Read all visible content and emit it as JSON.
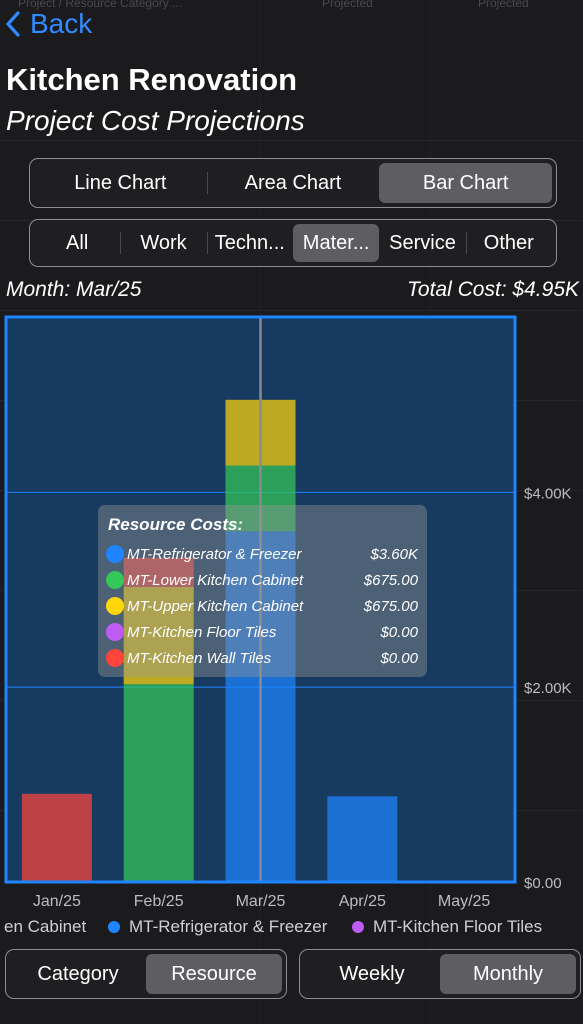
{
  "nav": {
    "back_label": "Back"
  },
  "header": {
    "title": "Kitchen Renovation",
    "subtitle": "Project Cost Projections"
  },
  "background_fragments": [
    "Project / Resource Category ...",
    "Projected",
    "Projected"
  ],
  "chart_type_tabs": [
    "Line Chart",
    "Area Chart",
    "Bar Chart"
  ],
  "chart_type_selected": 2,
  "category_tabs": [
    "All",
    "Work",
    "Techn...",
    "Mater...",
    "Service",
    "Other"
  ],
  "category_selected": 3,
  "summary": {
    "month": "Month: Mar/25",
    "total": "Total Cost: $4.95K"
  },
  "tooltip": {
    "title": "Resource Costs:",
    "rows": [
      {
        "name": "MT-Refrigerator & Freezer",
        "value": "$3.60K",
        "color": "#1f84ff"
      },
      {
        "name": "MT-Lower Kitchen Cabinet",
        "value": "$675.00",
        "color": "#34c759"
      },
      {
        "name": "MT-Upper Kitchen Cabinet",
        "value": "$675.00",
        "color": "#ffd60a"
      },
      {
        "name": "MT-Kitchen Floor Tiles",
        "value": "$0.00",
        "color": "#bf5af2"
      },
      {
        "name": "MT-Kitchen Wall Tiles",
        "value": "$0.00",
        "color": "#ff453a"
      }
    ]
  },
  "legend": [
    {
      "label": "en Cabinet",
      "color": null
    },
    {
      "label": "MT-Refrigerator & Freezer",
      "color": "#1f84ff"
    },
    {
      "label": "MT-Kitchen Floor Tiles",
      "color": "#bf5af2"
    }
  ],
  "group_tabs": [
    "Category",
    "Resource"
  ],
  "group_selected": 1,
  "period_tabs": [
    "Weekly",
    "Monthly"
  ],
  "period_selected": 1,
  "chart_data": {
    "type": "bar",
    "stacked": true,
    "categories": [
      "Jan/25",
      "Feb/25",
      "Mar/25",
      "Apr/25",
      "May/25"
    ],
    "y_ticks": [
      "$0.00",
      "$2.00K",
      "$4.00K"
    ],
    "y_tick_values": [
      0,
      2000,
      4000
    ],
    "ylim": [
      0,
      5800
    ],
    "grid": true,
    "highlighted_category": "Mar/25",
    "background_color": "#173a60",
    "border_color": "#1f84ff",
    "series": [
      {
        "name": "MT-Refrigerator & Freezer",
        "color": "#1f84ff",
        "values": [
          0,
          0,
          3600,
          880,
          0
        ]
      },
      {
        "name": "MT-Lower Kitchen Cabinet",
        "color": "#34c759",
        "values": [
          0,
          2030,
          675,
          0,
          0
        ]
      },
      {
        "name": "MT-Upper Kitchen Cabinet",
        "color": "#ffd60a",
        "values": [
          0,
          1000,
          675,
          0,
          0
        ]
      },
      {
        "name": "MT-Kitchen Floor Tiles",
        "color": "#bf5af2",
        "values": [
          0,
          0,
          0,
          0,
          0
        ]
      },
      {
        "name": "MT-Kitchen Wall Tiles",
        "color": "#ff453a",
        "values": [
          905,
          300,
          0,
          0,
          0
        ]
      }
    ]
  }
}
